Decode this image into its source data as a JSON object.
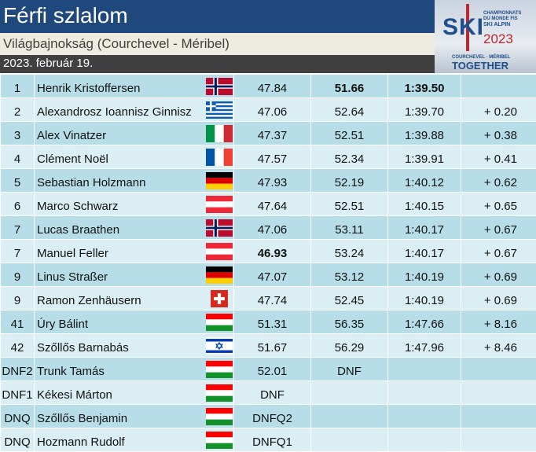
{
  "header": {
    "title": "Férfi szlalom",
    "subtitle": "Világbajnokság (Courchevel - Méribel)",
    "date": "2023. február 19."
  },
  "logo": {
    "ski": "SKI",
    "line1": "CHAMPIONNATS",
    "line2": "DU MONDE FIS",
    "line3": "SKI ALPIN",
    "year": "2023",
    "place": "COURCHEVEL · MÉRIBEL",
    "motto": "TOGETHER"
  },
  "rows": [
    {
      "rank": "1",
      "name": "Henrik Kristoffersen",
      "flag": "NOR",
      "run1": "47.84",
      "run2": "51.66",
      "total": "1:39.50",
      "diff": "",
      "bold": [
        "run2",
        "total"
      ]
    },
    {
      "rank": "2",
      "name": "Alexandrosz Ioannisz Ginnisz",
      "flag": "GRE",
      "run1": "47.06",
      "run2": "52.64",
      "total": "1:39.70",
      "diff": "+ 0.20"
    },
    {
      "rank": "3",
      "name": "Alex Vinatzer",
      "flag": "ITA",
      "run1": "47.37",
      "run2": "52.51",
      "total": "1:39.88",
      "diff": "+ 0.38"
    },
    {
      "rank": "4",
      "name": "Clément Noël",
      "flag": "FRA",
      "run1": "47.57",
      "run2": "52.34",
      "total": "1:39.91",
      "diff": "+ 0.41"
    },
    {
      "rank": "5",
      "name": "Sebastian Holzmann",
      "flag": "GER",
      "run1": "47.93",
      "run2": "52.19",
      "total": "1:40.12",
      "diff": "+ 0.62"
    },
    {
      "rank": "6",
      "name": "Marco Schwarz",
      "flag": "AUT",
      "run1": "47.64",
      "run2": "52.51",
      "total": "1:40.15",
      "diff": "+ 0.65"
    },
    {
      "rank": "7",
      "name": "Lucas Braathen",
      "flag": "NOR",
      "run1": "47.06",
      "run2": "53.11",
      "total": "1:40.17",
      "diff": "+ 0.67"
    },
    {
      "rank": "7",
      "name": "Manuel Feller",
      "flag": "AUT",
      "run1": "46.93",
      "run2": "53.24",
      "total": "1:40.17",
      "diff": "+ 0.67",
      "bold": [
        "run1"
      ]
    },
    {
      "rank": "9",
      "name": "Linus Straßer",
      "flag": "GER",
      "run1": "47.07",
      "run2": "53.12",
      "total": "1:40.19",
      "diff": "+ 0.69"
    },
    {
      "rank": "9",
      "name": "Ramon Zenhäusern",
      "flag": "SUI",
      "run1": "47.74",
      "run2": "52.45",
      "total": "1:40.19",
      "diff": "+ 0.69"
    },
    {
      "rank": "41",
      "name": "Úry Bálint",
      "flag": "HUN",
      "run1": "51.31",
      "run2": "56.35",
      "total": "1:47.66",
      "diff": "+ 8.16"
    },
    {
      "rank": "42",
      "name": "Szőllős Barnabás",
      "flag": "ISR",
      "run1": "51.67",
      "run2": "56.29",
      "total": "1:47.96",
      "diff": "+ 8.46"
    },
    {
      "rank": "DNF2",
      "name": "Trunk Tamás",
      "flag": "HUN",
      "run1": "52.01",
      "run2": "DNF",
      "total": "",
      "diff": ""
    },
    {
      "rank": "DNF1",
      "name": "Kékesi Márton",
      "flag": "HUN",
      "run1": "DNF",
      "run2": "",
      "total": "",
      "diff": ""
    },
    {
      "rank": "DNQ",
      "name": "Szőllős Benjamin",
      "flag": "HUN",
      "run1": "DNFQ2",
      "run2": "",
      "total": "",
      "diff": ""
    },
    {
      "rank": "DNQ",
      "name": "Hozmann Rudolf",
      "flag": "HUN",
      "run1": "DNFQ1",
      "run2": "",
      "total": "",
      "diff": ""
    }
  ]
}
